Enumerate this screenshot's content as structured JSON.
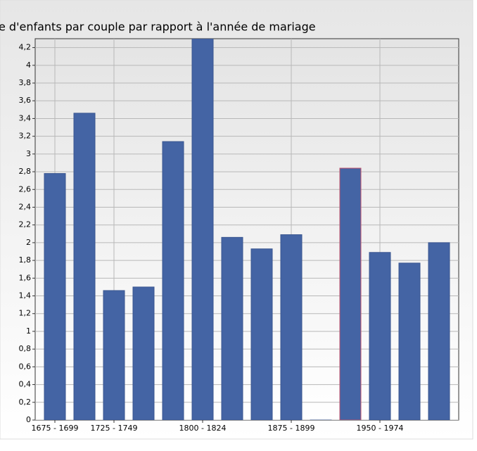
{
  "chart_data": {
    "type": "bar",
    "title": "e d'enfants par couple par rapport à l'année de mariage",
    "categories": [
      "1675 - 1699",
      null,
      "1725 - 1749",
      null,
      null,
      "1800 - 1824",
      null,
      null,
      "1875 - 1899",
      null,
      null,
      "1950 - 1974",
      null,
      null
    ],
    "values": [
      2.78,
      3.46,
      1.46,
      1.5,
      3.14,
      4.3,
      2.06,
      1.93,
      2.09,
      0,
      2.84,
      1.89,
      1.77,
      2.0
    ],
    "color": "#4464a4",
    "edgecolors": [
      "#3a5690",
      "#3a5690",
      "#3a5690",
      "#3a5690",
      "#3a5690",
      "#3a5690",
      "#3a5690",
      "#3a5690",
      "#3a5690",
      "#3a5690",
      "#c0506a",
      "#3a5690",
      "#3a5690",
      "#3a5690"
    ],
    "ylim": [
      0,
      4.3
    ],
    "yticks": [
      0,
      {
        "value": 0.2,
        "label": "0,2"
      },
      {
        "value": 0.4,
        "label": "0,4"
      },
      {
        "value": 0.6,
        "label": "0,6"
      },
      {
        "value": 0.8,
        "label": "0,8"
      },
      1,
      {
        "value": 1.2,
        "label": "1,2"
      },
      {
        "value": 1.4,
        "label": "1,4"
      },
      {
        "value": 1.6,
        "label": "1,6"
      },
      {
        "value": 1.8,
        "label": "1,8"
      },
      2,
      {
        "value": 2.2,
        "label": "2,2"
      },
      {
        "value": 2.4,
        "label": "2,4"
      },
      {
        "value": 2.6,
        "label": "2,6"
      },
      {
        "value": 2.8,
        "label": "2,8"
      },
      3,
      {
        "value": 3.2,
        "label": "3,2"
      },
      {
        "value": 3.4,
        "label": "3,4"
      },
      {
        "value": 3.6,
        "label": "3,6"
      },
      {
        "value": 3.8,
        "label": "3,8"
      },
      4,
      {
        "value": 4.2,
        "label": "4,2"
      }
    ],
    "grid": true
  }
}
